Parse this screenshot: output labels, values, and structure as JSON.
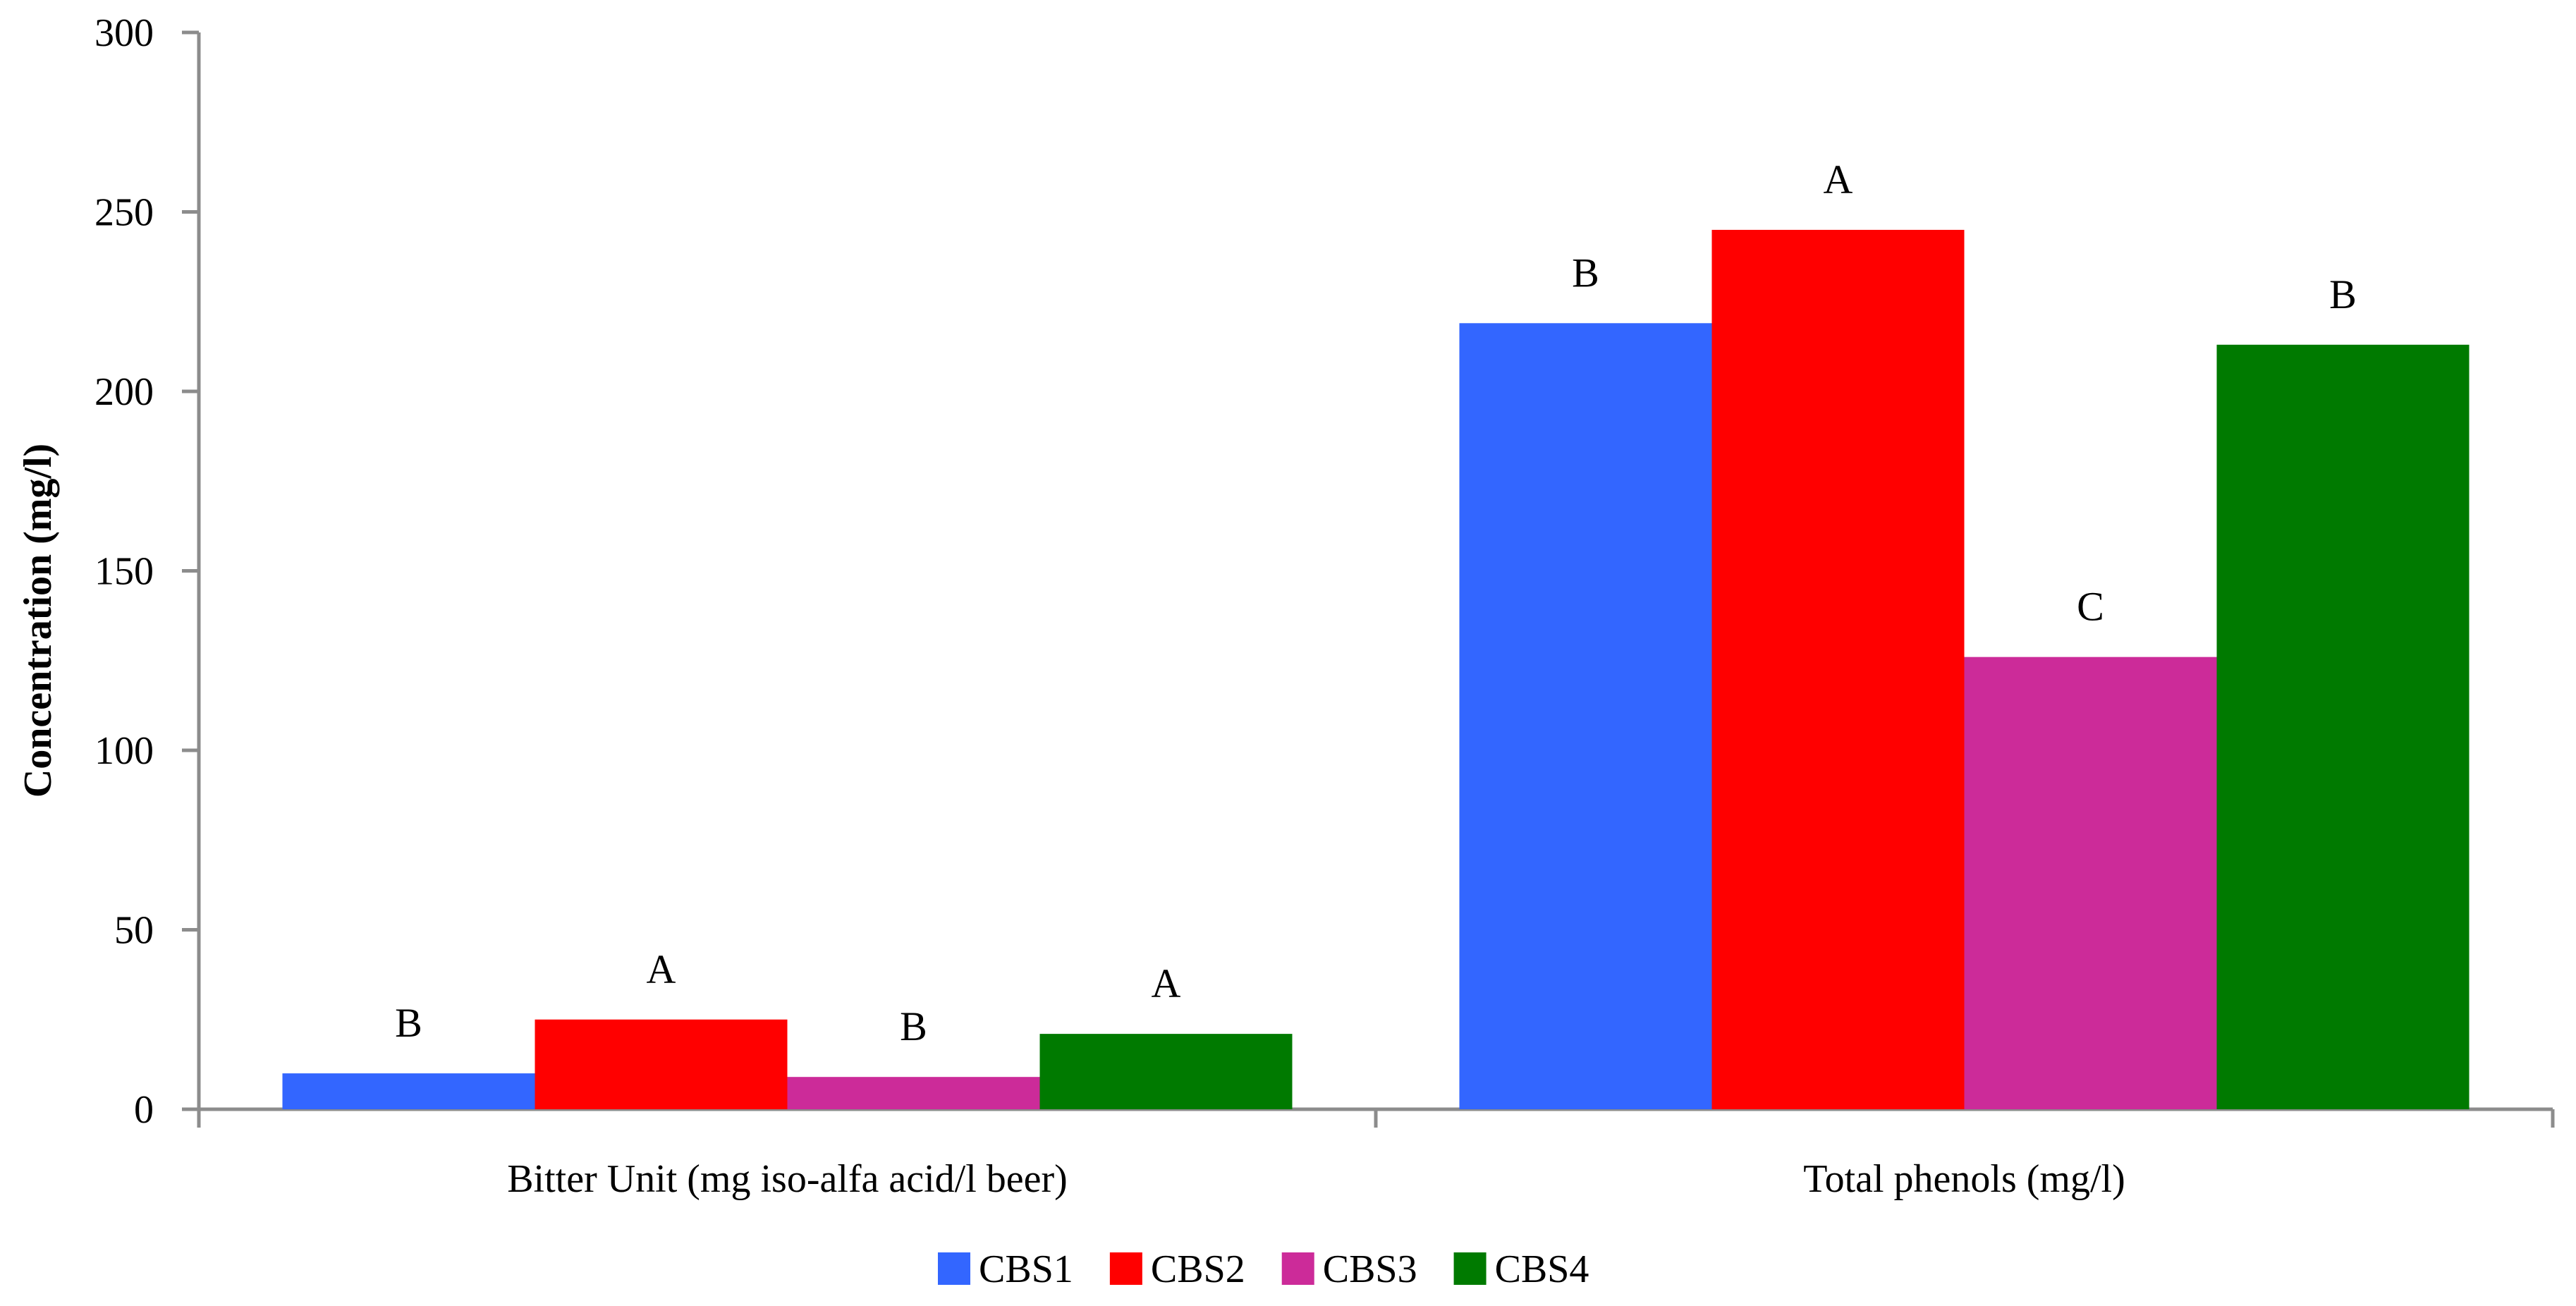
{
  "chart_data": {
    "type": "bar",
    "title": "",
    "xlabel": "",
    "ylabel": "Concentration (mg/l)",
    "ylim": [
      0,
      300
    ],
    "yticks": [
      0,
      50,
      100,
      150,
      200,
      250,
      300
    ],
    "grid": false,
    "legend_position": "bottom",
    "categories": [
      "Bitter Unit (mg iso-alfa acid/l beer)",
      "Total phenols (mg/l)"
    ],
    "series": [
      {
        "name": "CBS1",
        "color": "#3366ff",
        "values": [
          10,
          219
        ],
        "letters": [
          "B",
          "B"
        ]
      },
      {
        "name": "CBS2",
        "color": "#ff0000",
        "values": [
          25,
          245
        ],
        "letters": [
          "A",
          "A"
        ]
      },
      {
        "name": "CBS3",
        "color": "#cc2b99",
        "values": [
          9,
          126
        ],
        "letters": [
          "B",
          "C"
        ]
      },
      {
        "name": "CBS4",
        "color": "#007a00",
        "values": [
          21,
          213
        ],
        "letters": [
          "A",
          "B"
        ]
      }
    ]
  }
}
